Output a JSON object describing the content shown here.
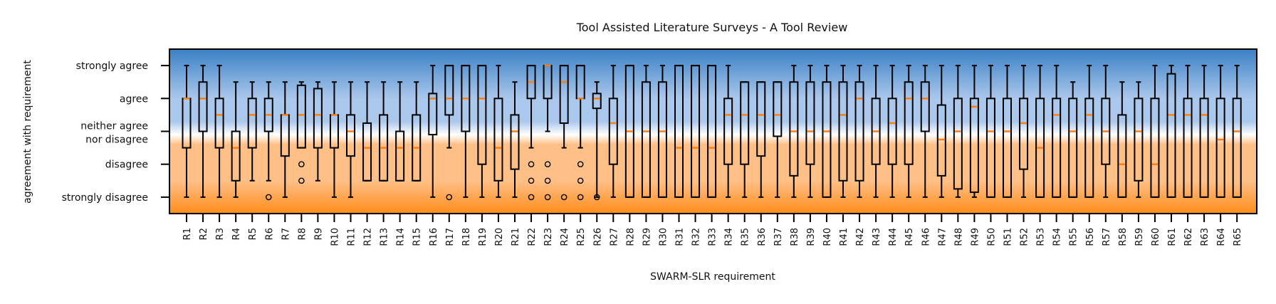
{
  "chart_data": {
    "type": "box",
    "title": "Tool Assisted Literature Surveys - A Tool Review",
    "xlabel": "SWARM-SLR requirement",
    "ylabel": "agreement with requirement",
    "ylim": [
      0.5,
      5.5
    ],
    "y_ticks": [
      {
        "value": 5,
        "label": "strongly agree"
      },
      {
        "value": 4,
        "label": "agree"
      },
      {
        "value": 3,
        "label": "neither agree",
        "label2": "nor disagree"
      },
      {
        "value": 2,
        "label": "disagree"
      },
      {
        "value": 1,
        "label": "strongly disagree"
      }
    ],
    "colors": {
      "agree_top": "#3a80c4",
      "agree_mid": "#aac7ec",
      "neutral": "#ffffff",
      "disagree_mid": "#ffc088",
      "disagree_bottom": "#ff8c1a",
      "median": "#ff7f0e",
      "box": "#000000"
    },
    "series": [
      {
        "name": "R1",
        "lo": 1,
        "q1": 2.5,
        "med": 4,
        "q3": 4,
        "hi": 5,
        "outliers": []
      },
      {
        "name": "R2",
        "lo": 1,
        "q1": 3,
        "med": 4,
        "q3": 4.5,
        "hi": 5,
        "outliers": []
      },
      {
        "name": "R3",
        "lo": 1,
        "q1": 2.5,
        "med": 3.5,
        "q3": 4,
        "hi": 5,
        "outliers": []
      },
      {
        "name": "R4",
        "lo": 1,
        "q1": 1.5,
        "med": 2.5,
        "q3": 3,
        "hi": 4.5,
        "outliers": []
      },
      {
        "name": "R5",
        "lo": 1.5,
        "q1": 2.5,
        "med": 3.5,
        "q3": 4,
        "hi": 4.5,
        "outliers": []
      },
      {
        "name": "R6",
        "lo": 1.5,
        "q1": 3,
        "med": 3.5,
        "q3": 4,
        "hi": 4.5,
        "outliers": [
          1
        ]
      },
      {
        "name": "R7",
        "lo": 1,
        "q1": 2.25,
        "med": 3.5,
        "q3": 3.5,
        "hi": 4.5,
        "outliers": []
      },
      {
        "name": "R8",
        "lo": 2.5,
        "q1": 2.5,
        "med": 3.5,
        "q3": 4.4,
        "hi": 4.5,
        "outliers": [
          2,
          1.5
        ]
      },
      {
        "name": "R9",
        "lo": 1.5,
        "q1": 2.5,
        "med": 3.5,
        "q3": 4.3,
        "hi": 4.5,
        "outliers": []
      },
      {
        "name": "R10",
        "lo": 1,
        "q1": 2.5,
        "med": 3.5,
        "q3": 3.5,
        "hi": 4.5,
        "outliers": []
      },
      {
        "name": "R11",
        "lo": 1,
        "q1": 2.25,
        "med": 3,
        "q3": 3.5,
        "hi": 4.5,
        "outliers": []
      },
      {
        "name": "R12",
        "lo": 1.5,
        "q1": 1.5,
        "med": 2.5,
        "q3": 3.25,
        "hi": 4.5,
        "outliers": []
      },
      {
        "name": "R13",
        "lo": 1.5,
        "q1": 1.5,
        "med": 2.5,
        "q3": 3.5,
        "hi": 4.5,
        "outliers": []
      },
      {
        "name": "R14",
        "lo": 1.5,
        "q1": 1.5,
        "med": 2.5,
        "q3": 3,
        "hi": 4.5,
        "outliers": []
      },
      {
        "name": "R15",
        "lo": 1.5,
        "q1": 1.5,
        "med": 2.5,
        "q3": 3.5,
        "hi": 4.5,
        "outliers": []
      },
      {
        "name": "R16",
        "lo": 1,
        "q1": 2.9,
        "med": 4,
        "q3": 4.15,
        "hi": 5,
        "outliers": []
      },
      {
        "name": "R17",
        "lo": 2.5,
        "q1": 3.5,
        "med": 4,
        "q3": 5,
        "hi": 5,
        "outliers": [
          1
        ]
      },
      {
        "name": "R18",
        "lo": 1,
        "q1": 3,
        "med": 4,
        "q3": 5,
        "hi": 5,
        "outliers": []
      },
      {
        "name": "R19",
        "lo": 1,
        "q1": 2,
        "med": 4,
        "q3": 5,
        "hi": 5,
        "outliers": []
      },
      {
        "name": "R20",
        "lo": 1,
        "q1": 1.5,
        "med": 2.5,
        "q3": 4,
        "hi": 5,
        "outliers": []
      },
      {
        "name": "R21",
        "lo": 1,
        "q1": 1.85,
        "med": 3,
        "q3": 3.5,
        "hi": 4.5,
        "outliers": []
      },
      {
        "name": "R22",
        "lo": 2.5,
        "q1": 4,
        "med": 4.5,
        "q3": 5,
        "hi": 5,
        "outliers": [
          2,
          1.5,
          1
        ]
      },
      {
        "name": "R23",
        "lo": 3,
        "q1": 4,
        "med": 5,
        "q3": 5,
        "hi": 5,
        "outliers": [
          2,
          1.5,
          1
        ]
      },
      {
        "name": "R24",
        "lo": 2.5,
        "q1": 3.25,
        "med": 4.5,
        "q3": 5,
        "hi": 5,
        "outliers": [
          1
        ]
      },
      {
        "name": "R25",
        "lo": 2.5,
        "q1": 4,
        "med": 4,
        "q3": 5,
        "hi": 5,
        "outliers": [
          2,
          1.5,
          1
        ]
      },
      {
        "name": "R26",
        "lo": 1,
        "q1": 3.7,
        "med": 4,
        "q3": 4.15,
        "hi": 4.5,
        "outliers": [
          1
        ]
      },
      {
        "name": "R27",
        "lo": 1,
        "q1": 2,
        "med": 3.25,
        "q3": 4,
        "hi": 5,
        "outliers": []
      },
      {
        "name": "R28",
        "lo": 1,
        "q1": 1,
        "med": 3,
        "q3": 5,
        "hi": 5,
        "outliers": []
      },
      {
        "name": "R29",
        "lo": 1,
        "q1": 1,
        "med": 3,
        "q3": 4.5,
        "hi": 5,
        "outliers": []
      },
      {
        "name": "R30",
        "lo": 1,
        "q1": 1,
        "med": 3,
        "q3": 4.5,
        "hi": 5,
        "outliers": []
      },
      {
        "name": "R31",
        "lo": 1,
        "q1": 1,
        "med": 2.5,
        "q3": 5,
        "hi": 5,
        "outliers": []
      },
      {
        "name": "R32",
        "lo": 1,
        "q1": 1,
        "med": 2.5,
        "q3": 5,
        "hi": 5,
        "outliers": []
      },
      {
        "name": "R33",
        "lo": 1,
        "q1": 1,
        "med": 2.5,
        "q3": 5,
        "hi": 5,
        "outliers": []
      },
      {
        "name": "R34",
        "lo": 1,
        "q1": 2,
        "med": 3.5,
        "q3": 4,
        "hi": 5,
        "outliers": []
      },
      {
        "name": "R35",
        "lo": 1,
        "q1": 2,
        "med": 3.5,
        "q3": 4.5,
        "hi": 4.5,
        "outliers": []
      },
      {
        "name": "R36",
        "lo": 1,
        "q1": 2.25,
        "med": 3.5,
        "q3": 4.5,
        "hi": 4.5,
        "outliers": []
      },
      {
        "name": "R37",
        "lo": 1,
        "q1": 2.85,
        "med": 3.5,
        "q3": 4.5,
        "hi": 4.5,
        "outliers": []
      },
      {
        "name": "R38",
        "lo": 1,
        "q1": 1.65,
        "med": 3,
        "q3": 4.5,
        "hi": 5,
        "outliers": []
      },
      {
        "name": "R39",
        "lo": 1,
        "q1": 2,
        "med": 3,
        "q3": 4.5,
        "hi": 5,
        "outliers": []
      },
      {
        "name": "R40",
        "lo": 1,
        "q1": 1,
        "med": 3,
        "q3": 4.5,
        "hi": 5,
        "outliers": []
      },
      {
        "name": "R41",
        "lo": 1,
        "q1": 1.5,
        "med": 3.5,
        "q3": 4.5,
        "hi": 5,
        "outliers": []
      },
      {
        "name": "R42",
        "lo": 1,
        "q1": 1.5,
        "med": 4,
        "q3": 4.5,
        "hi": 5,
        "outliers": []
      },
      {
        "name": "R43",
        "lo": 1,
        "q1": 2,
        "med": 3,
        "q3": 4,
        "hi": 5,
        "outliers": []
      },
      {
        "name": "R44",
        "lo": 1,
        "q1": 2,
        "med": 3.25,
        "q3": 4,
        "hi": 5,
        "outliers": []
      },
      {
        "name": "R45",
        "lo": 1,
        "q1": 2,
        "med": 4,
        "q3": 4.5,
        "hi": 5,
        "outliers": []
      },
      {
        "name": "R46",
        "lo": 1,
        "q1": 3,
        "med": 4,
        "q3": 4.5,
        "hi": 5,
        "outliers": []
      },
      {
        "name": "R47",
        "lo": 1,
        "q1": 1.65,
        "med": 2.75,
        "q3": 3.8,
        "hi": 5,
        "outliers": []
      },
      {
        "name": "R48",
        "lo": 1,
        "q1": 1.25,
        "med": 3,
        "q3": 4,
        "hi": 5,
        "outliers": []
      },
      {
        "name": "R49",
        "lo": 1,
        "q1": 1.15,
        "med": 3.75,
        "q3": 4,
        "hi": 5,
        "outliers": []
      },
      {
        "name": "R50",
        "lo": 1,
        "q1": 1,
        "med": 3,
        "q3": 4,
        "hi": 5,
        "outliers": []
      },
      {
        "name": "R51",
        "lo": 1,
        "q1": 1,
        "med": 3,
        "q3": 4,
        "hi": 5,
        "outliers": []
      },
      {
        "name": "R52",
        "lo": 1,
        "q1": 1.85,
        "med": 3.25,
        "q3": 4,
        "hi": 5,
        "outliers": []
      },
      {
        "name": "R53",
        "lo": 1,
        "q1": 1,
        "med": 2.5,
        "q3": 4,
        "hi": 5,
        "outliers": []
      },
      {
        "name": "R54",
        "lo": 1,
        "q1": 1,
        "med": 3.5,
        "q3": 4,
        "hi": 5,
        "outliers": []
      },
      {
        "name": "R55",
        "lo": 1,
        "q1": 1,
        "med": 3,
        "q3": 4,
        "hi": 4.5,
        "outliers": []
      },
      {
        "name": "R56",
        "lo": 1,
        "q1": 1,
        "med": 3.5,
        "q3": 4,
        "hi": 5,
        "outliers": []
      },
      {
        "name": "R57",
        "lo": 1,
        "q1": 2,
        "med": 3,
        "q3": 4,
        "hi": 5,
        "outliers": []
      },
      {
        "name": "R58",
        "lo": 1,
        "q1": 1,
        "med": 2,
        "q3": 3.5,
        "hi": 4.5,
        "outliers": []
      },
      {
        "name": "R59",
        "lo": 1,
        "q1": 1.5,
        "med": 3,
        "q3": 4,
        "hi": 4.5,
        "outliers": []
      },
      {
        "name": "R60",
        "lo": 1,
        "q1": 1,
        "med": 2,
        "q3": 4,
        "hi": 5,
        "outliers": []
      },
      {
        "name": "R61",
        "lo": 1,
        "q1": 1,
        "med": 3.5,
        "q3": 4.75,
        "hi": 5,
        "outliers": []
      },
      {
        "name": "R62",
        "lo": 1,
        "q1": 1,
        "med": 3.5,
        "q3": 4,
        "hi": 5,
        "outliers": []
      },
      {
        "name": "R63",
        "lo": 1,
        "q1": 1,
        "med": 3.5,
        "q3": 4,
        "hi": 5,
        "outliers": []
      },
      {
        "name": "R64",
        "lo": 1,
        "q1": 1,
        "med": 2.75,
        "q3": 4,
        "hi": 5,
        "outliers": []
      },
      {
        "name": "R65",
        "lo": 1,
        "q1": 1,
        "med": 3,
        "q3": 4,
        "hi": 5,
        "outliers": []
      }
    ]
  }
}
